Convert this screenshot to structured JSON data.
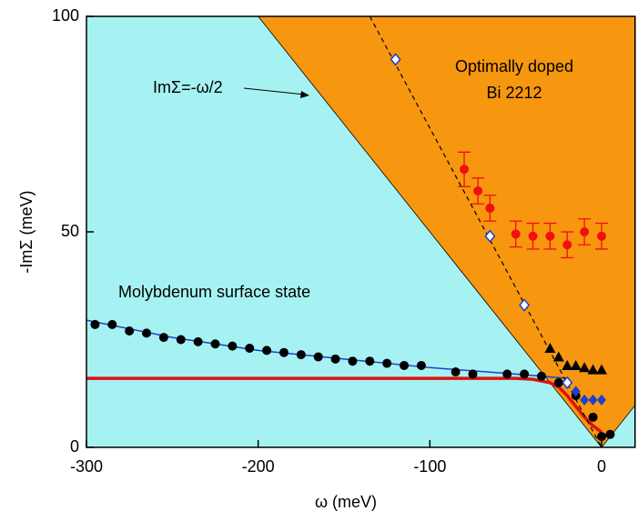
{
  "chart_data": {
    "type": "scatter",
    "xlabel": "ω (meV)",
    "ylabel": "-ImΣ (meV)",
    "xlim": [
      -300,
      20
    ],
    "ylim": [
      0,
      100
    ],
    "xticks": [
      -300,
      -200,
      -100,
      0
    ],
    "yticks": [
      0,
      50,
      100
    ],
    "background": "#a6f2f2",
    "region": {
      "color": "#f7960f",
      "x": [
        -200,
        0,
        20
      ],
      "values": [
        100,
        0,
        10
      ]
    },
    "annotations": [
      "ImΣ=-ω/2",
      "Optimally doped",
      "Bi 2212",
      "Molybdenum surface state"
    ],
    "series": [
      {
        "line": "solid",
        "color": "#1f3fd0",
        "width": 1.5,
        "x": [
          -300,
          -250,
          -200,
          -150,
          -100,
          -50,
          -20
        ],
        "values": [
          29.5,
          25.5,
          22.5,
          20.5,
          18.5,
          17,
          16
        ]
      },
      {
        "line": "solid",
        "color": "#e01010",
        "width": 3.5,
        "x": [
          -300,
          -50,
          -40,
          -30,
          -25,
          -20,
          -15,
          -10,
          -5,
          0
        ],
        "values": [
          16,
          16,
          15.8,
          15,
          14,
          12,
          9.5,
          7,
          5,
          3.5
        ]
      },
      {
        "line": "dashed",
        "color": "#000000",
        "width": 1.2,
        "x": [
          -135,
          0
        ],
        "values": [
          100,
          0
        ]
      },
      {
        "marker": "circle",
        "color": "#000000",
        "x": [
          -295,
          -285,
          -275,
          -265,
          -255,
          -245,
          -235,
          -225,
          -215,
          -205,
          -195,
          -185,
          -175,
          -165,
          -155,
          -145,
          -135,
          -125,
          -115,
          -105,
          -85,
          -75,
          -55,
          -45,
          -35,
          -25,
          -15,
          -5,
          0,
          5
        ],
        "values": [
          28.5,
          28.5,
          27,
          26.5,
          25.5,
          25,
          24.5,
          24,
          23.5,
          23,
          22.5,
          22,
          21.5,
          21,
          20.5,
          20,
          20,
          19.5,
          19,
          19,
          17.5,
          17,
          17,
          17,
          16.5,
          15,
          12,
          7,
          2.5,
          3
        ]
      },
      {
        "marker": "triangle",
        "color": "#000000",
        "x": [
          -30,
          -25,
          -20,
          -15,
          -10,
          -5,
          0
        ],
        "values": [
          23,
          21,
          19,
          19,
          18.5,
          18,
          18
        ]
      },
      {
        "marker": "diamond",
        "color": "#1f3fd0",
        "x": [
          -15,
          -10,
          -5,
          0
        ],
        "values": [
          13,
          11,
          11,
          11
        ]
      },
      {
        "marker": "open-diamond",
        "color": "#1f3fd0",
        "x": [
          -120,
          -65,
          -45,
          -20
        ],
        "values": [
          90,
          49,
          33,
          15
        ]
      },
      {
        "marker": "circle",
        "color": "#f01010",
        "x": [
          -80,
          -72,
          -65,
          -50,
          -40,
          -30,
          -20,
          -10,
          0
        ],
        "values": [
          64.5,
          59.5,
          55.5,
          49.5,
          49,
          49,
          47,
          50,
          49
        ],
        "errors": [
          4,
          3,
          3,
          3,
          3,
          3,
          3,
          3,
          3
        ]
      }
    ]
  }
}
